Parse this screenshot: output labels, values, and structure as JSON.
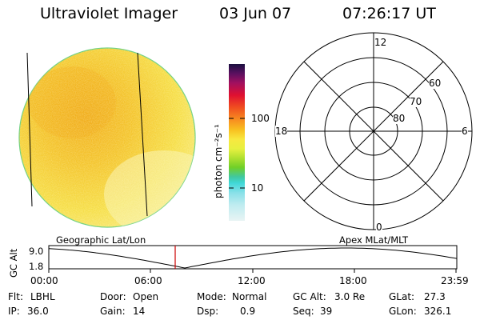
{
  "header": {
    "title": "Ultraviolet Imager",
    "date": "03 Jun 07",
    "time": "07:26:17 UT"
  },
  "colorbar": {
    "unit_label": "photon cm⁻²s⁻¹",
    "ticks": [
      "100",
      "10"
    ]
  },
  "polar_plot": {
    "mlt_labels": {
      "top": "12",
      "left": "18",
      "right": "6",
      "bottom": "0"
    },
    "lat_labels": [
      "60",
      "70",
      "80"
    ]
  },
  "timeline": {
    "left_label": "Geographic Lat/Lon",
    "right_label": "Apex MLat/MLT",
    "axis_title": "GC Alt",
    "y_max": "9.0",
    "y_min": "1.8",
    "x_ticks": [
      "00:00",
      "06:00",
      "12:00",
      "18:00",
      "23:59"
    ],
    "current_time_hours": 7.4375
  },
  "status": {
    "flt_label": "Flt:",
    "flt_value": "LBHL",
    "ip_label": "IP:",
    "ip_value": "36.0",
    "door_label": "Door:",
    "door_value": "Open",
    "gain_label": "Gain:",
    "gain_value": "14",
    "mode_label": "Mode:",
    "mode_value": "Normal",
    "dsp_label": "Dsp:",
    "dsp_value": "0.9",
    "gcalt_label": "GC Alt:",
    "gcalt_value": "3.0 Re",
    "seq_label": "Seq:",
    "seq_value": "39",
    "glat_label": "GLat:",
    "glat_value": "27.3",
    "glon_label": "GLon:",
    "glon_value": "326.1"
  },
  "colors": {
    "disk_base": "#f5dc3a",
    "disk_orange": "#f0b020",
    "disk_light": "#f8f0a0",
    "time_marker": "#cc0000"
  }
}
